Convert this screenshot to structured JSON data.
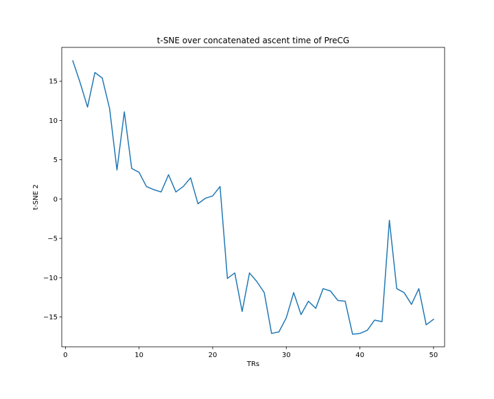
{
  "chart_data": {
    "type": "line",
    "title": "t-SNE over concatenated ascent time of PreCG",
    "xlabel": "TRs",
    "ylabel": "t-SNE 2",
    "xlim": [
      -0.5,
      51.5
    ],
    "ylim": [
      -18.8,
      19.3
    ],
    "xticks": [
      0,
      10,
      20,
      30,
      40,
      50
    ],
    "yticks": [
      -15,
      -10,
      -5,
      0,
      5,
      10,
      15
    ],
    "xtick_labels": [
      "0",
      "10",
      "20",
      "30",
      "40",
      "50"
    ],
    "ytick_labels": [
      "−15",
      "−10",
      "−5",
      "0",
      "5",
      "10",
      "15"
    ],
    "grid": false,
    "legend": "none",
    "series": [
      {
        "color": "#1f77b4",
        "x": [
          1,
          2,
          3,
          4,
          5,
          6,
          7,
          8,
          9,
          10,
          11,
          12,
          13,
          14,
          15,
          16,
          17,
          18,
          19,
          20,
          21,
          22,
          23,
          24,
          25,
          26,
          27,
          28,
          29,
          30,
          31,
          32,
          33,
          34,
          35,
          36,
          37,
          38,
          39,
          40,
          41,
          42,
          43,
          44,
          45,
          46,
          47,
          48,
          49,
          50
        ],
        "y": [
          17.6,
          14.8,
          11.7,
          16.1,
          15.4,
          11.5,
          3.7,
          11.1,
          3.9,
          3.4,
          1.6,
          1.2,
          0.9,
          3.1,
          0.9,
          1.6,
          2.7,
          -0.6,
          0.1,
          0.4,
          1.6,
          -10.1,
          -9.4,
          -14.3,
          -9.4,
          -10.5,
          -11.9,
          -17.1,
          -16.9,
          -15.1,
          -11.9,
          -14.7,
          -13.0,
          -13.9,
          -11.4,
          -11.7,
          -12.9,
          -13.0,
          -17.2,
          -17.1,
          -16.7,
          -15.4,
          -15.6,
          -2.7,
          -11.4,
          -11.9,
          -13.4,
          -11.4,
          -16.0,
          -15.3
        ]
      }
    ]
  }
}
